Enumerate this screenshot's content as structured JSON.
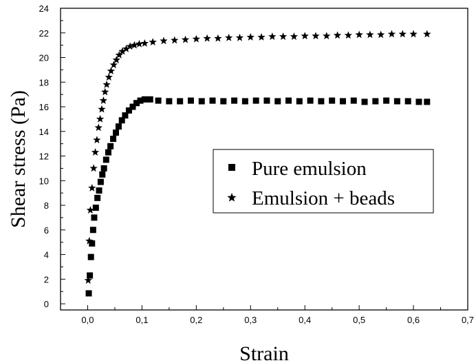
{
  "chart_data": {
    "type": "scatter",
    "title": "",
    "xlabel": "Strain",
    "ylabel": "Shear stress (Pa)",
    "xlim": [
      -0.05,
      0.7
    ],
    "ylim": [
      -0.5,
      24
    ],
    "x_ticks": [
      0.0,
      0.1,
      0.2,
      0.3,
      0.4,
      0.5,
      0.6,
      0.7
    ],
    "x_tick_labels": [
      "0,0",
      "0,1",
      "0,2",
      "0,3",
      "0,4",
      "0,5",
      "0,6",
      "0,7"
    ],
    "y_ticks": [
      0,
      2,
      4,
      6,
      8,
      10,
      12,
      14,
      16,
      18,
      20,
      22,
      24
    ],
    "y_tick_labels": [
      "0",
      "2",
      "4",
      "6",
      "8",
      "10",
      "12",
      "14",
      "16",
      "18",
      "20",
      "22",
      "24"
    ],
    "grid": false,
    "legend_position": "center-right",
    "series": [
      {
        "name": "Pure emulsion",
        "marker": "square",
        "color": "#000000",
        "points": [
          [
            0.002,
            0.85
          ],
          [
            0.004,
            2.3
          ],
          [
            0.006,
            3.8
          ],
          [
            0.008,
            4.9
          ],
          [
            0.01,
            6.0
          ],
          [
            0.012,
            7.0
          ],
          [
            0.015,
            7.8
          ],
          [
            0.018,
            8.6
          ],
          [
            0.021,
            9.2
          ],
          [
            0.024,
            9.9
          ],
          [
            0.027,
            10.5
          ],
          [
            0.03,
            11.0
          ],
          [
            0.034,
            11.7
          ],
          [
            0.038,
            12.3
          ],
          [
            0.042,
            12.8
          ],
          [
            0.047,
            13.4
          ],
          [
            0.052,
            13.9
          ],
          [
            0.057,
            14.4
          ],
          [
            0.063,
            14.9
          ],
          [
            0.069,
            15.3
          ],
          [
            0.076,
            15.7
          ],
          [
            0.083,
            16.0
          ],
          [
            0.09,
            16.3
          ],
          [
            0.097,
            16.5
          ],
          [
            0.105,
            16.6
          ],
          [
            0.115,
            16.6
          ],
          [
            0.13,
            16.5
          ],
          [
            0.15,
            16.45
          ],
          [
            0.17,
            16.45
          ],
          [
            0.19,
            16.5
          ],
          [
            0.21,
            16.45
          ],
          [
            0.23,
            16.5
          ],
          [
            0.25,
            16.45
          ],
          [
            0.27,
            16.5
          ],
          [
            0.29,
            16.45
          ],
          [
            0.31,
            16.5
          ],
          [
            0.33,
            16.5
          ],
          [
            0.35,
            16.45
          ],
          [
            0.37,
            16.5
          ],
          [
            0.39,
            16.45
          ],
          [
            0.41,
            16.5
          ],
          [
            0.43,
            16.45
          ],
          [
            0.45,
            16.5
          ],
          [
            0.47,
            16.45
          ],
          [
            0.49,
            16.5
          ],
          [
            0.51,
            16.4
          ],
          [
            0.53,
            16.45
          ],
          [
            0.55,
            16.5
          ],
          [
            0.57,
            16.45
          ],
          [
            0.59,
            16.45
          ],
          [
            0.61,
            16.4
          ],
          [
            0.625,
            16.4
          ]
        ]
      },
      {
        "name": "Emulsion + beads",
        "marker": "star",
        "color": "#000000",
        "points": [
          [
            0.001,
            1.9
          ],
          [
            0.003,
            5.1
          ],
          [
            0.005,
            7.6
          ],
          [
            0.008,
            9.4
          ],
          [
            0.011,
            11.0
          ],
          [
            0.014,
            12.3
          ],
          [
            0.017,
            13.3
          ],
          [
            0.02,
            14.3
          ],
          [
            0.023,
            15.0
          ],
          [
            0.026,
            15.8
          ],
          [
            0.029,
            16.5
          ],
          [
            0.032,
            17.2
          ],
          [
            0.035,
            17.8
          ],
          [
            0.039,
            18.4
          ],
          [
            0.043,
            18.9
          ],
          [
            0.048,
            19.4
          ],
          [
            0.053,
            19.8
          ],
          [
            0.058,
            20.2
          ],
          [
            0.064,
            20.5
          ],
          [
            0.071,
            20.7
          ],
          [
            0.078,
            20.9
          ],
          [
            0.086,
            21.0
          ],
          [
            0.095,
            21.1
          ],
          [
            0.105,
            21.15
          ],
          [
            0.12,
            21.25
          ],
          [
            0.14,
            21.35
          ],
          [
            0.16,
            21.4
          ],
          [
            0.18,
            21.45
          ],
          [
            0.2,
            21.5
          ],
          [
            0.22,
            21.55
          ],
          [
            0.24,
            21.55
          ],
          [
            0.26,
            21.6
          ],
          [
            0.28,
            21.6
          ],
          [
            0.3,
            21.65
          ],
          [
            0.32,
            21.65
          ],
          [
            0.34,
            21.7
          ],
          [
            0.36,
            21.7
          ],
          [
            0.38,
            21.7
          ],
          [
            0.4,
            21.75
          ],
          [
            0.42,
            21.75
          ],
          [
            0.44,
            21.75
          ],
          [
            0.46,
            21.8
          ],
          [
            0.48,
            21.8
          ],
          [
            0.5,
            21.85
          ],
          [
            0.52,
            21.85
          ],
          [
            0.54,
            21.85
          ],
          [
            0.56,
            21.9
          ],
          [
            0.58,
            21.9
          ],
          [
            0.6,
            21.9
          ],
          [
            0.625,
            21.9
          ]
        ]
      }
    ]
  }
}
